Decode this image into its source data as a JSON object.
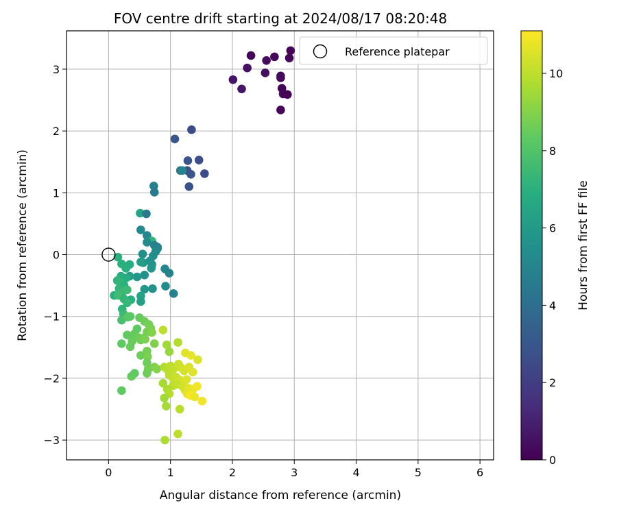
{
  "chart_data": {
    "type": "scatter",
    "title": "FOV centre drift starting at 2024/08/17 08:20:48",
    "xlabel": "Angular distance from reference (arcmin)",
    "ylabel": "Rotation from reference (arcmin)",
    "xlim": [
      -0.68,
      6.22
    ],
    "ylim": [
      -3.32,
      3.62
    ],
    "xticks": [
      0,
      1,
      2,
      3,
      4,
      5,
      6
    ],
    "yticks": [
      -3,
      -2,
      -1,
      0,
      1,
      2,
      3
    ],
    "grid": true,
    "legend": {
      "placement": "top-right",
      "label": "Reference platepar"
    },
    "reference_point": {
      "x": 0,
      "y": 0
    },
    "colorbar": {
      "label": "Hours from first FF file",
      "range": [
        0,
        11.1
      ],
      "ticks": [
        0,
        2,
        4,
        6,
        8,
        10
      ],
      "colormap": "viridis"
    },
    "points": [
      [
        2.3,
        3.22,
        0.1
      ],
      [
        2.68,
        3.2,
        0.2
      ],
      [
        2.94,
        3.3,
        0.1
      ],
      [
        2.92,
        3.18,
        0.15
      ],
      [
        2.55,
        3.14,
        0.3
      ],
      [
        2.24,
        3.02,
        0.5
      ],
      [
        2.53,
        2.94,
        0.4
      ],
      [
        2.78,
        2.89,
        0.2
      ],
      [
        2.78,
        2.86,
        0.3
      ],
      [
        2.01,
        2.83,
        0.6
      ],
      [
        2.15,
        2.68,
        0.7
      ],
      [
        2.8,
        2.69,
        0.1
      ],
      [
        2.82,
        2.6,
        0.2
      ],
      [
        2.89,
        2.59,
        0.05
      ],
      [
        2.78,
        2.34,
        0.1
      ],
      [
        1.34,
        2.02,
        2.5
      ],
      [
        1.07,
        1.87,
        3.0
      ],
      [
        1.28,
        1.52,
        2.8
      ],
      [
        1.46,
        1.53,
        2.6
      ],
      [
        1.27,
        1.36,
        2.7
      ],
      [
        1.33,
        1.3,
        2.9
      ],
      [
        1.55,
        1.31,
        2.5
      ],
      [
        1.3,
        1.1,
        2.8
      ],
      [
        1.16,
        1.36,
        4.3
      ],
      [
        1.19,
        1.36,
        5.0
      ],
      [
        0.73,
        1.11,
        4.8
      ],
      [
        0.74,
        1.01,
        4.6
      ],
      [
        0.51,
        0.67,
        6.5
      ],
      [
        0.61,
        0.66,
        4.4
      ],
      [
        0.52,
        0.4,
        5.2
      ],
      [
        0.62,
        0.31,
        5.0
      ],
      [
        0.65,
        0.22,
        5.5
      ],
      [
        0.7,
        0.22,
        7.2
      ],
      [
        0.74,
        0.15,
        4.8
      ],
      [
        0.79,
        0.12,
        4.5
      ],
      [
        0.79,
        0.1,
        5.0
      ],
      [
        0.62,
        0.2,
        5.3
      ],
      [
        0.76,
        0.05,
        5.2
      ],
      [
        0.55,
        0.01,
        5.5
      ],
      [
        0.72,
        -0.02,
        5.4
      ],
      [
        0.67,
        -0.1,
        5.6
      ],
      [
        0.56,
        -0.13,
        5.8
      ],
      [
        0.7,
        -0.16,
        5.7
      ],
      [
        0.52,
        -0.12,
        6.2
      ],
      [
        0.69,
        -0.22,
        5.8
      ],
      [
        0.58,
        -0.33,
        5.6
      ],
      [
        0.91,
        -0.23,
        5.0
      ],
      [
        0.98,
        -0.3,
        4.9
      ],
      [
        0.92,
        -0.51,
        5.3
      ],
      [
        1.05,
        -0.63,
        4.8
      ],
      [
        0.71,
        -0.55,
        5.6
      ],
      [
        0.58,
        -0.56,
        5.9
      ],
      [
        0.46,
        -0.36,
        5.9
      ],
      [
        0.34,
        -0.35,
        6.2
      ],
      [
        0.52,
        -0.67,
        6.4
      ],
      [
        0.52,
        -0.76,
        6.2
      ],
      [
        0.15,
        -0.04,
        7.0
      ],
      [
        0.21,
        -0.15,
        7.0
      ],
      [
        0.34,
        -0.16,
        6.8
      ],
      [
        0.28,
        -0.22,
        7.0
      ],
      [
        0.2,
        -0.35,
        6.8
      ],
      [
        0.21,
        -0.39,
        7.0
      ],
      [
        0.28,
        -0.38,
        6.9
      ],
      [
        0.14,
        -0.42,
        7.2
      ],
      [
        0.2,
        -0.45,
        7.3
      ],
      [
        0.25,
        -0.5,
        7.0
      ],
      [
        0.17,
        -0.55,
        7.2
      ],
      [
        0.23,
        -0.6,
        7.4
      ],
      [
        0.3,
        -0.57,
        7.5
      ],
      [
        0.09,
        -0.66,
        7.0
      ],
      [
        0.16,
        -0.66,
        7.6
      ],
      [
        0.25,
        -0.72,
        7.2
      ],
      [
        0.36,
        -0.73,
        7.0
      ],
      [
        0.3,
        -0.78,
        7.4
      ],
      [
        0.22,
        -0.88,
        7.2
      ],
      [
        0.24,
        -0.96,
        7.5
      ],
      [
        0.21,
        -1.06,
        7.8
      ],
      [
        0.34,
        -1.0,
        7.9
      ],
      [
        0.31,
        -1.01,
        8.1
      ],
      [
        0.35,
        -1.0,
        8.2
      ],
      [
        0.5,
        -1.02,
        8.4
      ],
      [
        0.58,
        -1.08,
        8.6
      ],
      [
        0.46,
        -1.2,
        8.3
      ],
      [
        0.65,
        -1.13,
        8.7
      ],
      [
        0.68,
        -1.19,
        8.8
      ],
      [
        0.62,
        -1.25,
        8.7
      ],
      [
        0.7,
        -1.26,
        9.0
      ],
      [
        0.42,
        -1.28,
        8.4
      ],
      [
        0.3,
        -1.3,
        8.3
      ],
      [
        0.35,
        -1.32,
        8.4
      ],
      [
        0.48,
        -1.34,
        8.6
      ],
      [
        0.38,
        -1.4,
        8.5
      ],
      [
        0.52,
        -1.38,
        8.6
      ],
      [
        0.56,
        -1.35,
        8.7
      ],
      [
        0.59,
        -1.37,
        8.8
      ],
      [
        0.21,
        -1.44,
        8.3
      ],
      [
        0.35,
        -1.49,
        8.5
      ],
      [
        0.74,
        -1.44,
        8.9
      ],
      [
        0.88,
        -1.22,
        10.0
      ],
      [
        0.52,
        -1.63,
        8.6
      ],
      [
        0.62,
        -1.56,
        8.7
      ],
      [
        0.63,
        -1.65,
        8.8
      ],
      [
        0.62,
        -1.75,
        8.6
      ],
      [
        0.64,
        -1.85,
        8.7
      ],
      [
        0.62,
        -1.92,
        8.6
      ],
      [
        0.42,
        -1.92,
        8.3
      ],
      [
        0.37,
        -1.97,
        8.4
      ],
      [
        0.74,
        -1.82,
        8.9
      ],
      [
        0.78,
        -1.85,
        9.0
      ],
      [
        0.98,
        -1.57,
        9.3
      ],
      [
        0.94,
        -1.46,
        9.5
      ],
      [
        0.21,
        -2.2,
        8.3
      ],
      [
        1.12,
        -1.42,
        9.8
      ],
      [
        1.24,
        -1.59,
        10.6
      ],
      [
        1.33,
        -1.63,
        10.7
      ],
      [
        1.44,
        -1.7,
        10.5
      ],
      [
        0.9,
        -1.82,
        9.8
      ],
      [
        0.95,
        -1.86,
        9.9
      ],
      [
        1.0,
        -1.8,
        10.0
      ],
      [
        1.05,
        -1.85,
        10.1
      ],
      [
        1.13,
        -1.77,
        10.2
      ],
      [
        1.17,
        -1.83,
        10.3
      ],
      [
        1.22,
        -1.88,
        10.4
      ],
      [
        1.3,
        -1.82,
        10.5
      ],
      [
        1.36,
        -1.9,
        10.6
      ],
      [
        0.98,
        -1.95,
        10.0
      ],
      [
        1.04,
        -2.0,
        10.1
      ],
      [
        1.09,
        -1.98,
        10.2
      ],
      [
        1.15,
        -2.03,
        10.3
      ],
      [
        1.2,
        -2.07,
        10.4
      ],
      [
        1.26,
        -2.02,
        10.5
      ],
      [
        0.88,
        -2.08,
        9.6
      ],
      [
        1.04,
        -2.12,
        10.0
      ],
      [
        1.1,
        -2.1,
        10.1
      ],
      [
        1.2,
        -2.14,
        10.3
      ],
      [
        1.24,
        -2.2,
        10.4
      ],
      [
        1.29,
        -2.16,
        10.6
      ],
      [
        1.36,
        -2.18,
        10.8
      ],
      [
        1.43,
        -2.13,
        10.9
      ],
      [
        1.27,
        -2.25,
        10.7
      ],
      [
        1.32,
        -2.28,
        11.0
      ],
      [
        1.39,
        -2.3,
        10.8
      ],
      [
        1.51,
        -2.37,
        10.9
      ],
      [
        0.95,
        -2.18,
        9.7
      ],
      [
        0.98,
        -2.25,
        9.8
      ],
      [
        0.9,
        -2.32,
        9.5
      ],
      [
        0.93,
        -2.45,
        9.6
      ],
      [
        1.15,
        -2.5,
        9.9
      ],
      [
        1.12,
        -2.9,
        10.0
      ],
      [
        0.91,
        -3.0,
        9.7
      ]
    ]
  }
}
